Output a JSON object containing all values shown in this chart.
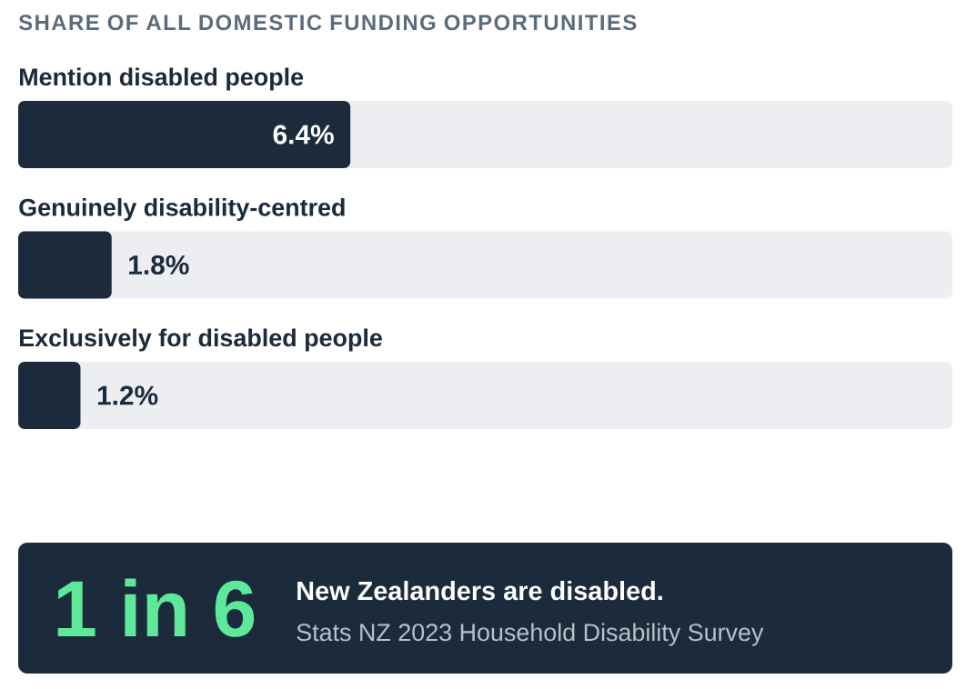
{
  "chart_data": {
    "type": "bar",
    "orientation": "horizontal",
    "title": "SHARE OF ALL DOMESTIC FUNDING OPPORTUNITIES",
    "categories": [
      "Mention disabled people",
      "Genuinely disability-centred",
      "Exclusively for disabled people"
    ],
    "values": [
      6.4,
      1.8,
      1.2
    ],
    "value_labels": [
      "6.4%",
      "1.8%",
      "1.2%"
    ],
    "color": "#1c2b3c",
    "xlim": [
      0,
      18
    ],
    "annotations": [
      "1 in 6",
      "New Zealanders are disabled.",
      "Stats NZ 2023 Household Disability Survey"
    ]
  }
}
